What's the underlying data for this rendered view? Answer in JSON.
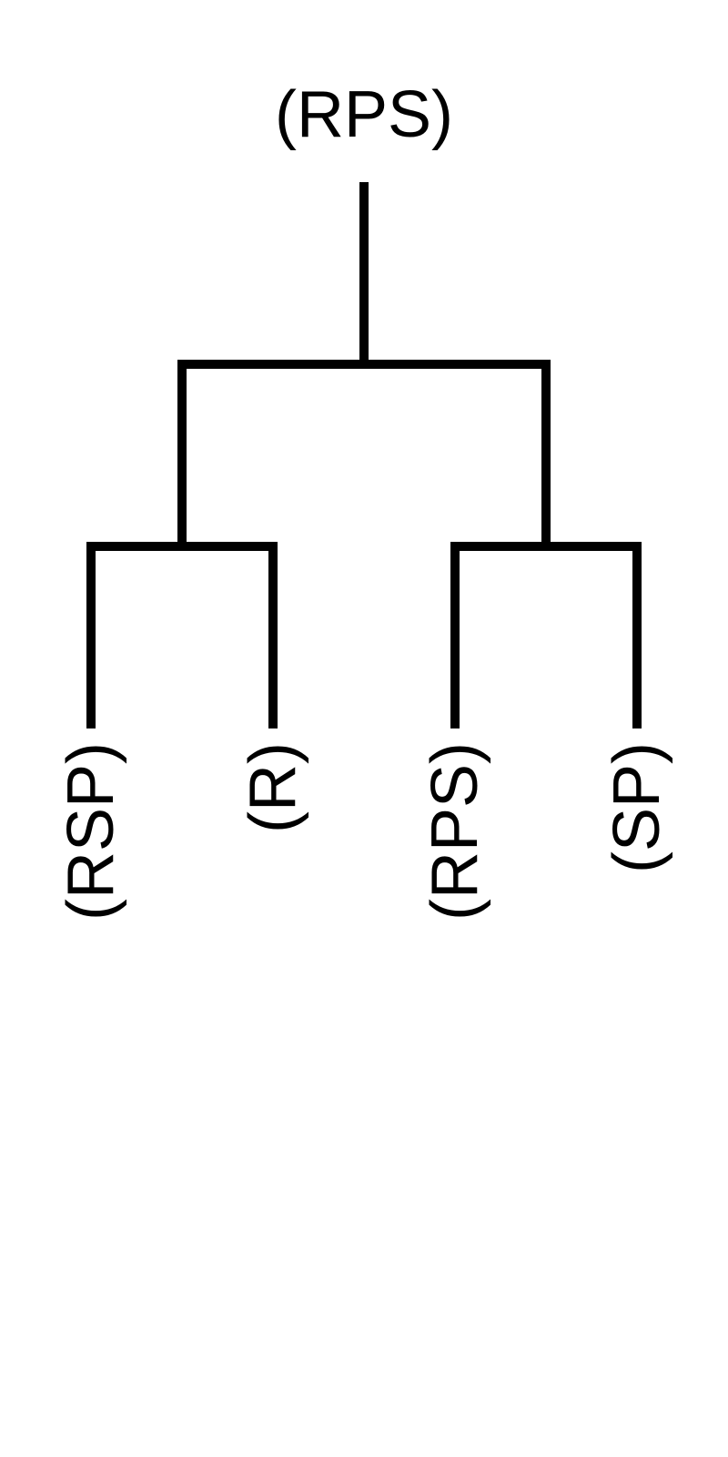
{
  "tree": {
    "root": {
      "label": "(RPS)",
      "children": [
        {
          "children": [
            {
              "label": "(RSP)"
            },
            {
              "label": "(R)"
            }
          ]
        },
        {
          "children": [
            {
              "label": "(RPS)"
            },
            {
              "label": "(SP)"
            }
          ]
        }
      ]
    },
    "line_color": "#000000",
    "text_color": "#000000"
  }
}
